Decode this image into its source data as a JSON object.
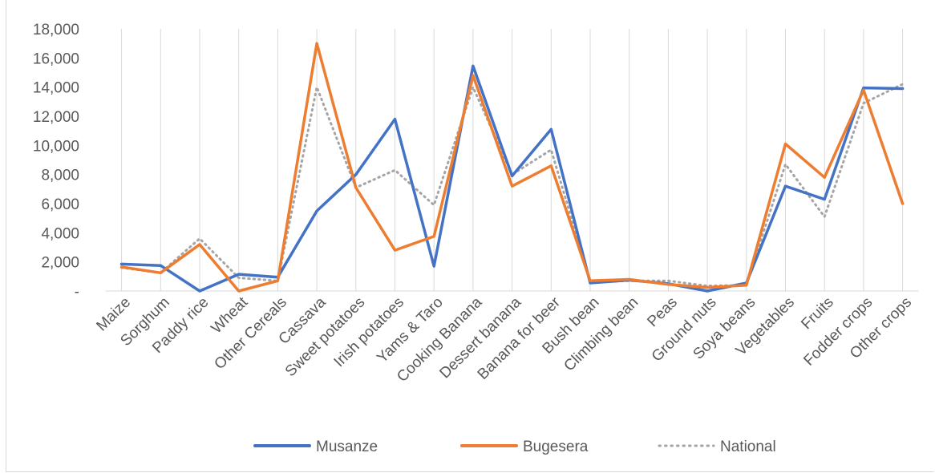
{
  "chart_data": {
    "type": "line",
    "categories": [
      "Maize",
      "Sorghum",
      "Paddy rice",
      "Wheat",
      "Other Cereals",
      "Cassava",
      "Sweet potatoes",
      "Irish potatoes",
      "Yams & Taro",
      "Cooking Banana",
      "Dessert banana",
      "Banana for beer",
      "Bush bean",
      "Climbing bean",
      "Peas",
      "Ground nuts",
      "Soya beans",
      "Vegetables",
      "Fruits",
      "Fodder crops",
      "Other crops"
    ],
    "series": [
      {
        "name": "Musanze",
        "color": "#4472c4",
        "style": "solid",
        "values": [
          1850,
          1750,
          0,
          1150,
          950,
          5500,
          8000,
          11800,
          1700,
          15450,
          7900,
          11100,
          550,
          750,
          500,
          0,
          550,
          7200,
          6300,
          13950,
          13900
        ]
      },
      {
        "name": "Bugesera",
        "color": "#ed7d31",
        "style": "solid",
        "values": [
          1650,
          1250,
          3200,
          0,
          700,
          17000,
          7100,
          2800,
          3750,
          14800,
          7200,
          8600,
          700,
          800,
          450,
          250,
          400,
          10100,
          7800,
          13800,
          6000
        ]
      },
      {
        "name": "National",
        "color": "#a5a5a5",
        "style": "dotted",
        "values": [
          1600,
          1250,
          3600,
          900,
          700,
          14000,
          7100,
          8300,
          5900,
          14000,
          8000,
          9700,
          650,
          700,
          700,
          350,
          400,
          8700,
          5100,
          12900,
          14200
        ]
      }
    ],
    "y_ticks": [
      "-",
      "2,000",
      "4,000",
      "6,000",
      "8,000",
      "10,000",
      "12,000",
      "14,000",
      "16,000",
      "18,000"
    ],
    "ylim": [
      0,
      18000
    ],
    "grid": "vertical",
    "legend": "bottom"
  }
}
